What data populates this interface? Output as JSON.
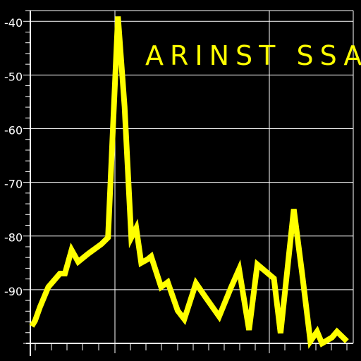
{
  "app": {
    "title": "ARINST SSA",
    "title_color": "#ffff00",
    "background_color": "#000000",
    "grid_color": "#ffffff",
    "trace_color": "#ffff00"
  },
  "chart_data": {
    "type": "line",
    "title": "ARINST SSA",
    "xlabel": "",
    "ylabel": "",
    "ylim": [
      -100,
      -38
    ],
    "y_ticks": [
      -40,
      -50,
      -60,
      -70,
      -80,
      -90
    ],
    "grid": true,
    "series": [
      {
        "values": [
          [
            0,
            -96.8
          ],
          [
            2,
            -95.8
          ],
          [
            5,
            -93.2
          ],
          [
            10,
            -89.5
          ],
          [
            17,
            -87.0
          ],
          [
            20,
            -87.0
          ],
          [
            24,
            -82.6
          ],
          [
            28,
            -84.8
          ],
          [
            34,
            -83.3
          ],
          [
            42,
            -81.5
          ],
          [
            46,
            -80.3
          ],
          [
            52,
            -39.1
          ],
          [
            56,
            -55.9
          ],
          [
            60,
            -80.3
          ],
          [
            63,
            -78.5
          ],
          [
            66,
            -85.0
          ],
          [
            70,
            -84.3
          ],
          [
            72,
            -83.8
          ],
          [
            78,
            -89.5
          ],
          [
            82,
            -88.6
          ],
          [
            88,
            -93.9
          ],
          [
            92,
            -95.5
          ],
          [
            99,
            -88.8
          ],
          [
            105,
            -91.5
          ],
          [
            113,
            -95.0
          ],
          [
            120,
            -89.7
          ],
          [
            125,
            -86.2
          ],
          [
            131,
            -97.5
          ],
          [
            136,
            -85.3
          ],
          [
            146,
            -87.9
          ],
          [
            150,
            -98.1
          ],
          [
            158,
            -75.0
          ],
          [
            163,
            -87.0
          ],
          [
            168,
            -99.6
          ],
          [
            172,
            -97.8
          ],
          [
            175,
            -100.0
          ],
          [
            181,
            -98.9
          ],
          [
            184,
            -97.8
          ],
          [
            190,
            -99.6
          ]
        ]
      }
    ]
  }
}
